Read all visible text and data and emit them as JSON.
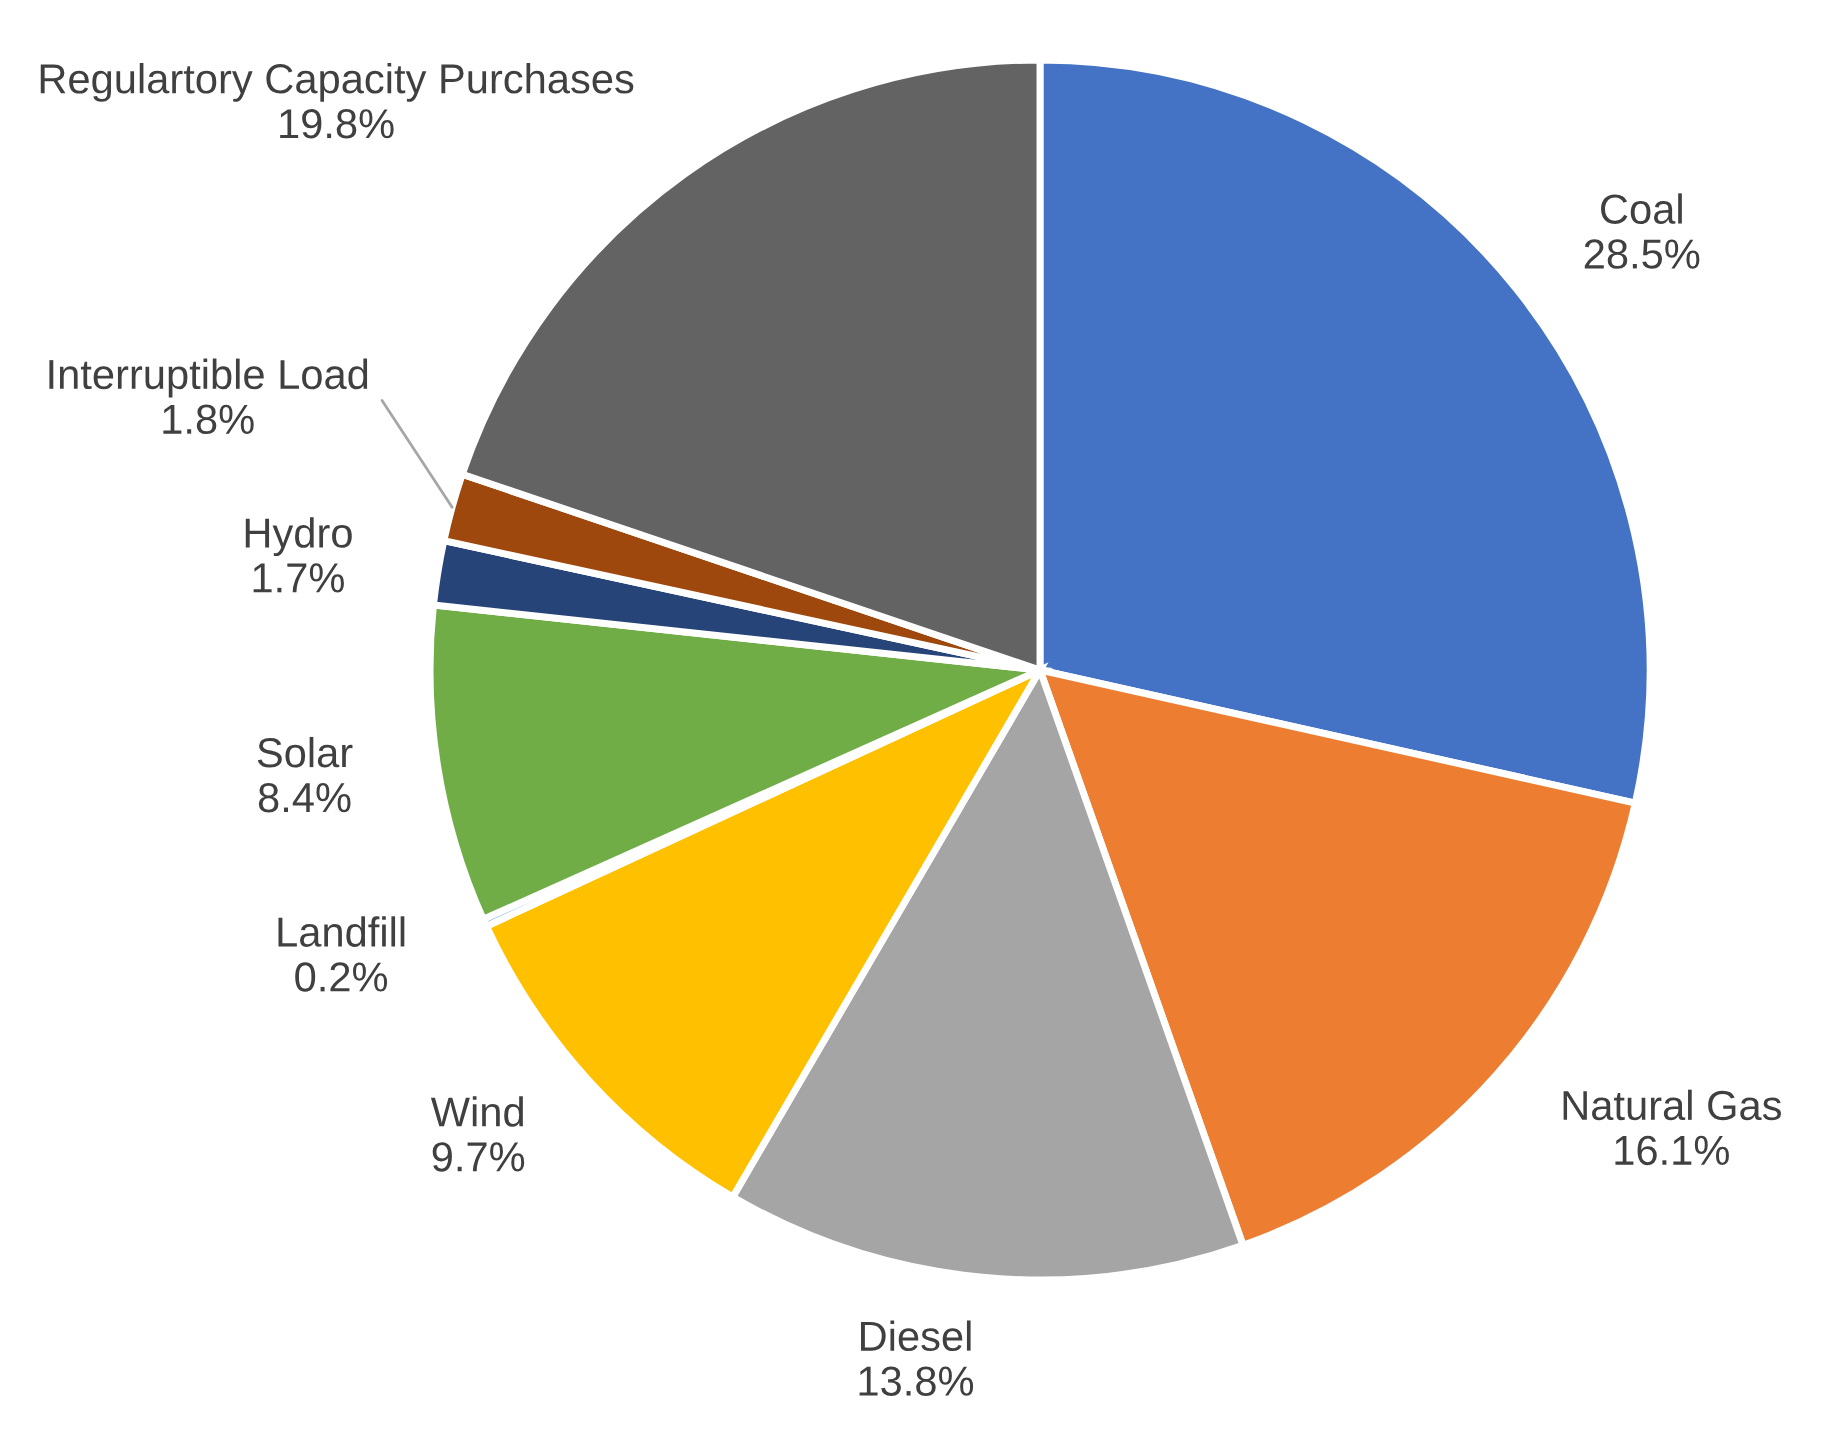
{
  "chart_data": {
    "type": "pie",
    "categories": [
      "Coal",
      "Natural Gas",
      "Diesel",
      "Wind",
      "Landfill",
      "Solar",
      "Hydro",
      "Interruptible Load",
      "Regulartory Capacity Purchases"
    ],
    "values": [
      28.5,
      16.1,
      13.8,
      9.7,
      0.2,
      8.4,
      1.7,
      1.8,
      19.8
    ],
    "value_labels": [
      "28.5%",
      "16.1%",
      "13.8%",
      "9.7%",
      "0.2%",
      "8.4%",
      "1.7%",
      "1.8%",
      "19.8%"
    ],
    "colors": [
      "#4472c4",
      "#ed7d31",
      "#a5a5a5",
      "#ffc000",
      "#5b9bd5",
      "#70ad47",
      "#264478",
      "#9e480e",
      "#636363"
    ],
    "legend": false
  }
}
